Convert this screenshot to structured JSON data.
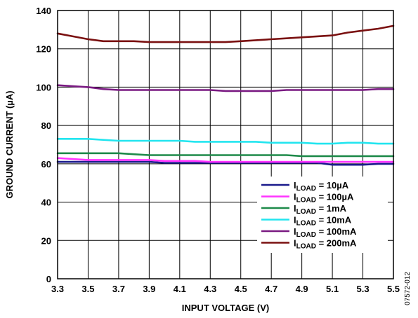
{
  "chart_data": {
    "type": "line",
    "xlabel": "INPUT VOLTAGE (V)",
    "ylabel": "GROUND CURRENT (µA)",
    "xlim": [
      3.3,
      5.5
    ],
    "ylim": [
      0,
      140
    ],
    "x_ticks": [
      3.3,
      3.5,
      3.7,
      3.9,
      4.1,
      4.3,
      4.5,
      4.7,
      4.9,
      5.1,
      5.3,
      5.5
    ],
    "x_tick_labels": [
      "3.3",
      "3.5",
      "3.7",
      "3.9",
      "4.1",
      "4.3",
      "4.5",
      "4.7",
      "4.9",
      "5.1",
      "5.3",
      "5.5"
    ],
    "y_ticks": [
      0,
      20,
      40,
      60,
      80,
      100,
      120,
      140
    ],
    "y_tick_labels": [
      "0",
      "20",
      "40",
      "60",
      "80",
      "100",
      "120",
      "140"
    ],
    "grid": true,
    "legend_position": "bottom-right",
    "figure_id": "07572-012",
    "x": [
      3.3,
      3.4,
      3.5,
      3.6,
      3.7,
      3.8,
      3.9,
      4.0,
      4.1,
      4.2,
      4.3,
      4.4,
      4.5,
      4.6,
      4.7,
      4.8,
      4.9,
      5.0,
      5.1,
      5.2,
      5.3,
      5.4,
      5.5
    ],
    "series": [
      {
        "name_main": "I",
        "name_sub": "LOAD",
        "name_rest": " = 10µA",
        "color": "#1a1a8c",
        "values": [
          61,
          61,
          61,
          61,
          61,
          61,
          61,
          60.5,
          60.5,
          60.5,
          60.5,
          60.5,
          60.5,
          60.5,
          60.5,
          60.5,
          60.5,
          60.5,
          59.5,
          59.5,
          59.5,
          60,
          60
        ]
      },
      {
        "name_main": "I",
        "name_sub": "LOAD",
        "name_rest": " = 100µA",
        "color": "#ff33ff",
        "values": [
          63,
          62.5,
          62,
          62,
          62,
          62,
          62,
          61.5,
          61.5,
          61.5,
          61,
          61,
          61,
          61,
          61,
          61,
          61,
          61,
          61,
          61,
          61,
          61,
          61
        ]
      },
      {
        "name_main": "I",
        "name_sub": "LOAD",
        "name_rest": " = 1mA",
        "color": "#1e8a4a",
        "values": [
          65.5,
          65.5,
          65.5,
          65.5,
          65.5,
          65,
          64.5,
          64.5,
          64.5,
          64.5,
          64.5,
          64.5,
          64.5,
          64.5,
          64.5,
          64.5,
          64,
          64,
          64,
          64,
          64,
          64,
          64
        ]
      },
      {
        "name_main": "I",
        "name_sub": "LOAD",
        "name_rest": " = 10mA",
        "color": "#22e5ef",
        "values": [
          73,
          73,
          73,
          72.5,
          72,
          72,
          72,
          72,
          72,
          71.5,
          71.5,
          71.5,
          71.5,
          71.5,
          71,
          71,
          71,
          70.5,
          70.5,
          71,
          71,
          70.5,
          70.5
        ]
      },
      {
        "name_main": "I",
        "name_sub": "LOAD",
        "name_rest": " = 100mA",
        "color": "#7a1a82",
        "values": [
          101,
          100.5,
          100,
          99,
          98.5,
          98.5,
          98.5,
          98.5,
          98.5,
          98.5,
          98.5,
          98,
          98,
          98,
          98,
          98.5,
          98.5,
          98.5,
          98.5,
          98.5,
          98.5,
          99,
          99
        ]
      },
      {
        "name_main": "I",
        "name_sub": "LOAD",
        "name_rest": " = 200mA",
        "color": "#7a1010",
        "values": [
          128,
          126.5,
          125,
          124,
          124,
          124,
          123.5,
          123.5,
          123.5,
          123.5,
          123.5,
          123.5,
          124,
          124.5,
          125,
          125.5,
          126,
          126.5,
          127,
          128.5,
          129.5,
          130.5,
          132
        ]
      }
    ]
  }
}
